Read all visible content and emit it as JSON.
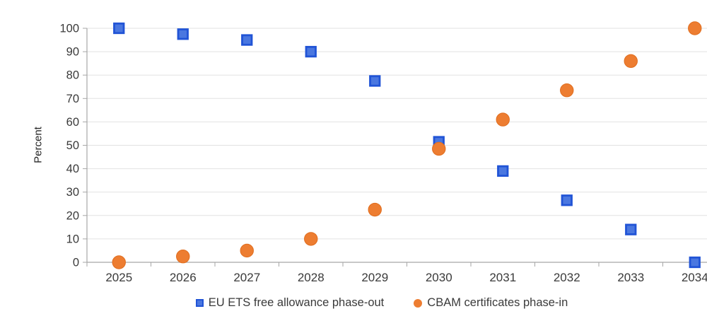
{
  "chart_data": {
    "type": "scatter",
    "title": "",
    "xlabel": "",
    "ylabel": "Percent",
    "ylim": [
      0,
      100
    ],
    "ytick_step": 10,
    "grid": true,
    "legend_position": "bottom",
    "categories": [
      "2025",
      "2026",
      "2027",
      "2028",
      "2029",
      "2030",
      "2031",
      "2032",
      "2033",
      "2034"
    ],
    "series": [
      {
        "name": "EU ETS free allowance phase-out",
        "marker": "square",
        "fill_color": "#4a77e0",
        "border_color": "#2154d6",
        "values": [
          100,
          97.5,
          95,
          90,
          77.5,
          51.5,
          39,
          26.5,
          14,
          0
        ]
      },
      {
        "name": "CBAM certificates phase-in",
        "marker": "circle",
        "fill_color": "#ed7d31",
        "border_color": "#e06d1e",
        "values": [
          0,
          2.5,
          5,
          10,
          22.5,
          48.5,
          61,
          73.5,
          86,
          100
        ]
      }
    ],
    "style": {
      "gridline_color": "#e2e2e2",
      "axis_color": "#a6a6a6",
      "tick_label_color": "#3a3a3a"
    }
  }
}
